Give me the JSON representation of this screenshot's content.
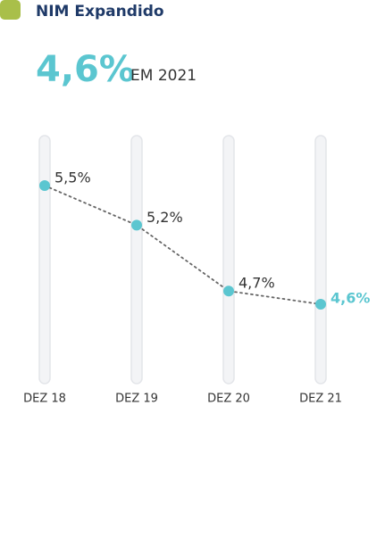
{
  "chart_data": {
    "type": "line",
    "title": "NIM Expandido",
    "headline": "4,6%",
    "subtitle": "EM 2021",
    "categories": [
      "DEZ 18",
      "DEZ 19",
      "DEZ 20",
      "DEZ 21"
    ],
    "values": [
      5.5,
      5.2,
      4.7,
      4.6
    ],
    "value_labels": [
      "5,5%",
      "5,2%",
      "4,7%",
      "4,6%"
    ],
    "color": "#5bc6d0",
    "line_color": "#666666",
    "legend_color": "#a9bf4a"
  }
}
